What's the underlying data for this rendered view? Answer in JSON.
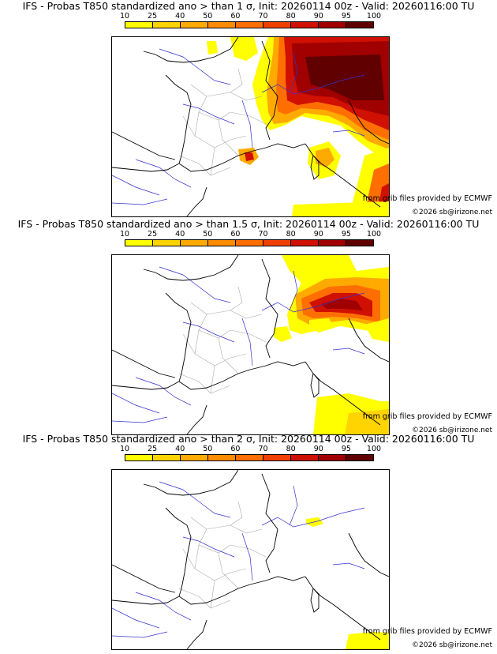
{
  "colors": {
    "bins": [
      "#ffff00",
      "#ffd400",
      "#ffaa00",
      "#ff8c00",
      "#ff6e00",
      "#f04000",
      "#d01000",
      "#a00000",
      "#600000"
    ],
    "border": "#000000",
    "rivers": "#3333cc",
    "regions": "#aaaaaa"
  },
  "colorbar": {
    "ticks": [
      "10",
      "25",
      "40",
      "50",
      "60",
      "70",
      "80",
      "90",
      "95",
      "100"
    ]
  },
  "panels": [
    {
      "title": "IFS - Probas T850  standardized ano > than 1 σ, Init: 20260114 00z - Valid: 20260116:00 TU",
      "credit_source": "from grib files provided by ECMWF",
      "credit_copyright": "©2026 sb@irizone.net"
    },
    {
      "title": "IFS - Probas T850  standardized ano > than 1.5 σ, Init: 20260114 00z - Valid: 20260116:00 TU",
      "credit_source": "from grib files provided by ECMWF",
      "credit_copyright": "©2026 sb@irizone.net"
    },
    {
      "title": "IFS - Probas T850  standardized ano > than 2 σ, Init: 20260114 00z - Valid: 20260116:00 TU",
      "credit_source": "from grib files provided by ECMWF",
      "credit_copyright": "©2026 sb@irizone.net"
    }
  ]
}
